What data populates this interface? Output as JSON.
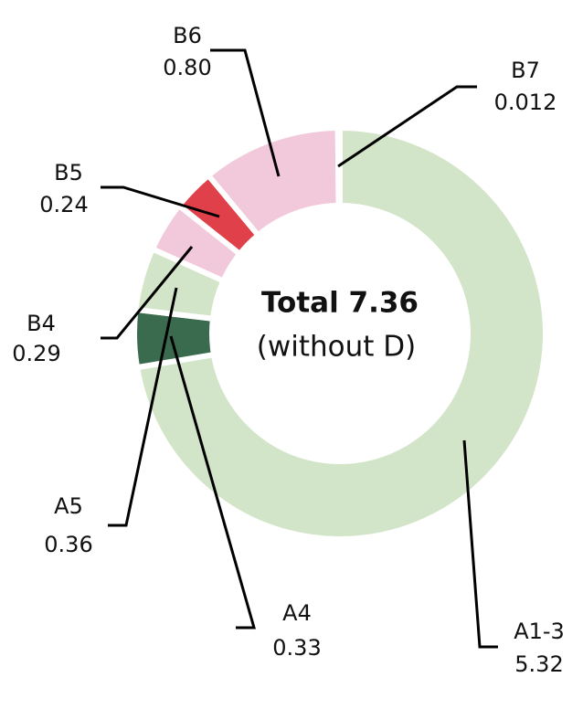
{
  "chart_data": {
    "type": "donut",
    "center_title": "Total 7.36",
    "center_subtitle": "(without D)",
    "categories": [
      "A1-3",
      "A4",
      "A5",
      "B4",
      "B5",
      "B6",
      "B7"
    ],
    "values": [
      5.32,
      0.33,
      0.36,
      0.29,
      0.24,
      0.8,
      0.012
    ],
    "value_labels": [
      "5.32",
      "0.33",
      "0.36",
      "0.29",
      "0.24",
      "0.80",
      "0.012"
    ],
    "colors": [
      "#d3e5c8",
      "#3a6b4e",
      "#d3e5c8",
      "#f1c9da",
      "#e0404a",
      "#f1c9da",
      "#f1c9da"
    ]
  }
}
